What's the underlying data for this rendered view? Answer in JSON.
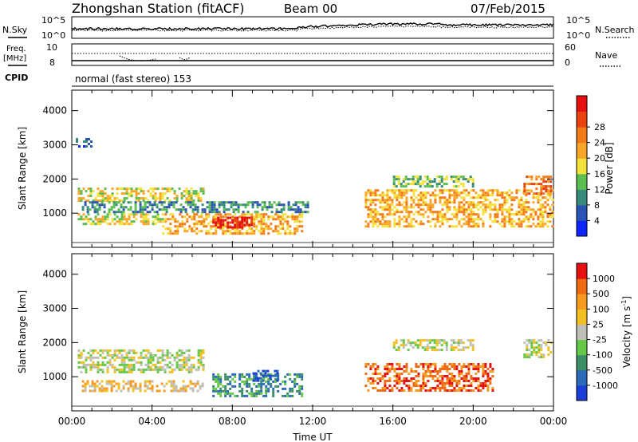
{
  "header": {
    "station": "Zhongshan Station (fitACF)",
    "beam": "Beam 00",
    "date": "07/Feb/2015"
  },
  "noise_panel": {
    "left_label": "N.Sky",
    "right_label": "N.Search",
    "left_ticks": [
      "10^5",
      "10^0"
    ],
    "right_ticks": [
      "10^5",
      "10^0"
    ]
  },
  "freq_panel": {
    "left_label_top": "Freq.",
    "left_label_unit": "[MHz]",
    "left_ticks": [
      "10",
      "8"
    ],
    "right_label": "Nave",
    "right_ticks": [
      "60",
      "0"
    ]
  },
  "cpid": {
    "label": "CPID",
    "mode_text": "normal (fast stereo) 153"
  },
  "chart_data": [
    {
      "type": "heatmap",
      "name": "power",
      "ylabel": "Slant Range [km]",
      "xlabel": "",
      "ylim": [
        0,
        4600
      ],
      "yticks": [
        "1000",
        "2000",
        "3000",
        "4000"
      ],
      "x_tick_labels": [
        "00:00",
        "04:00",
        "08:00",
        "12:00",
        "16:00",
        "20:00",
        "00:00"
      ],
      "colorbar": {
        "label": "Power [dB]",
        "ticks": [
          "4",
          "8",
          "12",
          "16",
          "20",
          "24",
          "28"
        ],
        "colors": [
          "#0d24ff",
          "#2a54b4",
          "#388a7a",
          "#5cbe50",
          "#f2e23a",
          "#f7a628",
          "#f27a18",
          "#e84210",
          "#e61010"
        ]
      },
      "echo_regions": [
        {
          "t_start": 0.3,
          "t_end": 6.5,
          "r_start": 1350,
          "r_end": 1750,
          "level": 4
        },
        {
          "t_start": 0.5,
          "t_end": 11.8,
          "r_start": 1050,
          "r_end": 1350,
          "level": 2
        },
        {
          "t_start": 0.3,
          "t_end": 4.5,
          "r_start": 650,
          "r_end": 1000,
          "level": 4
        },
        {
          "t_start": 4.5,
          "t_end": 11.5,
          "r_start": 400,
          "r_end": 1000,
          "level": 5
        },
        {
          "t_start": 7.0,
          "t_end": 9.0,
          "r_start": 600,
          "r_end": 900,
          "level": 8
        },
        {
          "t_start": 0.2,
          "t_end": 1.0,
          "r_start": 2950,
          "r_end": 3200,
          "level": 1
        },
        {
          "t_start": 14.6,
          "t_end": 23.9,
          "r_start": 600,
          "r_end": 1700,
          "level": 5
        },
        {
          "t_start": 16.0,
          "t_end": 20.0,
          "r_start": 1800,
          "r_end": 2100,
          "level": 3
        },
        {
          "t_start": 22.5,
          "t_end": 23.9,
          "r_start": 1600,
          "r_end": 2100,
          "level": 6
        }
      ]
    },
    {
      "type": "heatmap",
      "name": "velocity",
      "ylabel": "Slant Range [km]",
      "xlabel": "Time UT",
      "ylim": [
        0,
        4600
      ],
      "yticks": [
        "1000",
        "2000",
        "3000",
        "4000"
      ],
      "x_tick_labels": [
        "00:00",
        "04:00",
        "08:00",
        "12:00",
        "16:00",
        "20:00",
        "00:00"
      ],
      "colorbar": {
        "label": "Velocity [m s",
        "label_sup": "-1",
        "label_close": "]",
        "ticks": [
          "1000",
          "500",
          "100",
          "25",
          "-25",
          "-100",
          "-500",
          "-1000"
        ],
        "colors": [
          "#1a3ed6",
          "#2a6ab8",
          "#3c8e68",
          "#66c848",
          "#c0c0b8",
          "#f2c020",
          "#f79a20",
          "#f06a14",
          "#e61010"
        ]
      },
      "echo_regions": [
        {
          "t_start": 0.3,
          "t_end": 6.5,
          "r_start": 1150,
          "r_end": 1800,
          "level": 4
        },
        {
          "t_start": 0.5,
          "t_end": 6.5,
          "r_start": 600,
          "r_end": 900,
          "level": 5
        },
        {
          "t_start": 7.0,
          "t_end": 11.5,
          "r_start": 400,
          "r_end": 1100,
          "level": 2
        },
        {
          "t_start": 9.0,
          "t_end": 10.2,
          "r_start": 900,
          "r_end": 1200,
          "level": 0
        },
        {
          "t_start": 14.6,
          "t_end": 21.0,
          "r_start": 600,
          "r_end": 1400,
          "level": 7
        },
        {
          "t_start": 16.0,
          "t_end": 20.0,
          "r_start": 1800,
          "r_end": 2100,
          "level": 4
        },
        {
          "t_start": 22.5,
          "t_end": 23.9,
          "r_start": 1600,
          "r_end": 2100,
          "level": 4
        }
      ]
    }
  ]
}
